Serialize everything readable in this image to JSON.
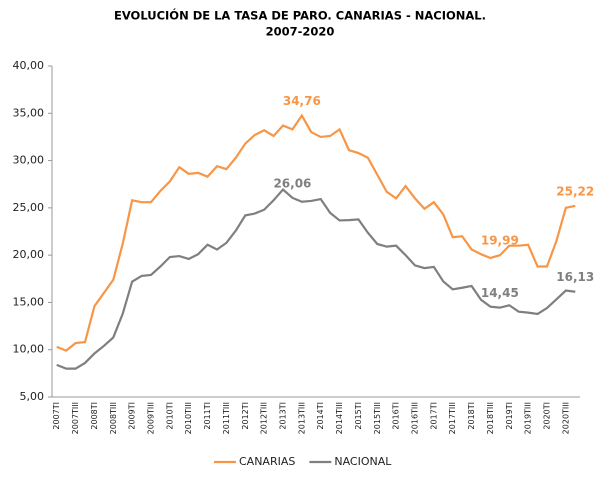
{
  "chart_data": {
    "type": "line",
    "title": [
      "EVOLUCIÓN DE LA TASA DE PARO. CANARIAS - NACIONAL.",
      "2007-2020"
    ],
    "categories": [
      "2007TI",
      null,
      "2007TIII",
      null,
      "2008TI",
      null,
      "2008TIII",
      null,
      "2009TI",
      null,
      "2009TIII",
      null,
      "2010TI",
      null,
      "2010TIII",
      null,
      "2011TI",
      null,
      "2011TIII",
      null,
      "2012TI",
      null,
      "2012TIII",
      null,
      "2013TI",
      null,
      "2013TIII",
      null,
      "2014TI",
      null,
      "2014TIII",
      null,
      "2015TI",
      null,
      "2015TIII",
      null,
      "2016TI",
      null,
      "2016TIII",
      null,
      "2017TI",
      null,
      "2017TIII",
      null,
      "2018TI",
      null,
      "2018TIII",
      null,
      "2019TI",
      null,
      "2019TIII",
      null,
      "2020TI",
      null,
      "2020TIII",
      null
    ],
    "series": [
      {
        "name": "CANARIAS",
        "color": "#f79646",
        "values": [
          10.3,
          9.9,
          10.7,
          10.8,
          14.6,
          16.0,
          17.4,
          21.2,
          25.8,
          25.6,
          25.6,
          26.8,
          27.8,
          29.3,
          28.6,
          28.7,
          28.3,
          29.4,
          29.1,
          30.3,
          31.8,
          32.7,
          33.2,
          32.6,
          33.7,
          33.3,
          34.76,
          33.0,
          32.5,
          32.6,
          33.3,
          31.1,
          30.8,
          30.3,
          28.5,
          26.7,
          26.0,
          27.3,
          26.0,
          24.9,
          25.6,
          24.3,
          21.9,
          22.0,
          20.6,
          20.1,
          19.7,
          19.99,
          21.0,
          21.0,
          21.1,
          18.8,
          18.8,
          21.5,
          25.0,
          25.22
        ],
        "value_labels": [
          null,
          null,
          null,
          null,
          null,
          null,
          null,
          null,
          null,
          null,
          null,
          null,
          null,
          null,
          null,
          null,
          null,
          null,
          null,
          null,
          null,
          null,
          null,
          null,
          null,
          null,
          "34,76",
          null,
          null,
          null,
          null,
          null,
          null,
          null,
          null,
          null,
          null,
          null,
          null,
          null,
          null,
          null,
          null,
          null,
          null,
          null,
          null,
          "19,99",
          null,
          null,
          null,
          null,
          null,
          null,
          null,
          "25,22"
        ]
      },
      {
        "name": "NACIONAL",
        "color": "#7f7f7f",
        "values": [
          8.4,
          8.0,
          8.0,
          8.6,
          9.6,
          10.4,
          11.3,
          13.8,
          17.2,
          17.8,
          17.9,
          18.8,
          19.8,
          19.9,
          19.6,
          20.1,
          21.1,
          20.6,
          21.3,
          22.6,
          24.2,
          24.4,
          24.8,
          25.8,
          26.94,
          26.06,
          25.65,
          25.73,
          25.93,
          24.47,
          23.67,
          23.7,
          23.78,
          22.37,
          21.18,
          20.9,
          21.0,
          20.0,
          18.91,
          18.63,
          18.75,
          17.22,
          16.38,
          16.55,
          16.74,
          15.28,
          14.55,
          14.45,
          14.7,
          14.02,
          13.92,
          13.78,
          14.41,
          15.33,
          16.26,
          16.13
        ],
        "value_labels": [
          null,
          null,
          null,
          null,
          null,
          null,
          null,
          null,
          null,
          null,
          null,
          null,
          null,
          null,
          null,
          null,
          null,
          null,
          null,
          null,
          null,
          null,
          null,
          null,
          null,
          "26,06",
          null,
          null,
          null,
          null,
          null,
          null,
          null,
          null,
          null,
          null,
          null,
          null,
          null,
          null,
          null,
          null,
          null,
          null,
          null,
          null,
          null,
          "14,45",
          null,
          null,
          null,
          null,
          null,
          null,
          null,
          "16,13"
        ]
      }
    ],
    "ylim": [
      5,
      40
    ],
    "yticks": [
      {
        "value": 5,
        "label": "5,00"
      },
      {
        "value": 10,
        "label": "10,00"
      },
      {
        "value": 15,
        "label": "15,00"
      },
      {
        "value": 20,
        "label": "20,00"
      },
      {
        "value": 25,
        "label": "25,00"
      },
      {
        "value": 30,
        "label": "30,00"
      },
      {
        "value": 35,
        "label": "35,00"
      },
      {
        "value": 40,
        "label": "40,00"
      }
    ],
    "grid": false,
    "legend": "bottom"
  }
}
